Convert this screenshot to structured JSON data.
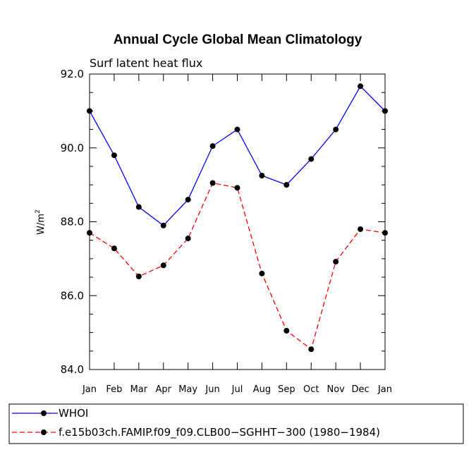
{
  "chart_data": {
    "type": "line",
    "title": "Annual Cycle Global Mean Climatology",
    "subtitle": "Surf latent heat flux",
    "ylabel_base": "W/m",
    "ylabel_sup": "2",
    "xlabel": "",
    "categories": [
      "Jan",
      "Feb",
      "Mar",
      "Apr",
      "May",
      "Jun",
      "Jul",
      "Aug",
      "Sep",
      "Oct",
      "Nov",
      "Dec",
      "Jan"
    ],
    "ylim": [
      84.0,
      92.0
    ],
    "yticks": [
      "84.0",
      "86.0",
      "88.0",
      "90.0",
      "92.0"
    ],
    "series": [
      {
        "name": "WHOI",
        "color": "#0000ff",
        "dash": "solid",
        "values": [
          91.0,
          89.8,
          88.4,
          87.9,
          88.6,
          90.05,
          90.5,
          89.25,
          89.0,
          89.7,
          90.5,
          91.67,
          91.0
        ]
      },
      {
        "name": "f.e15b03ch.FAMIP.f09_f09.CLB00−SGHHT−300 (1980−1984)",
        "color": "#ff0000",
        "dash": "dashed",
        "values": [
          87.7,
          87.28,
          86.52,
          86.82,
          87.55,
          89.05,
          88.92,
          86.6,
          85.05,
          84.55,
          86.92,
          87.8,
          87.7
        ]
      }
    ],
    "legend_position": "bottom"
  }
}
